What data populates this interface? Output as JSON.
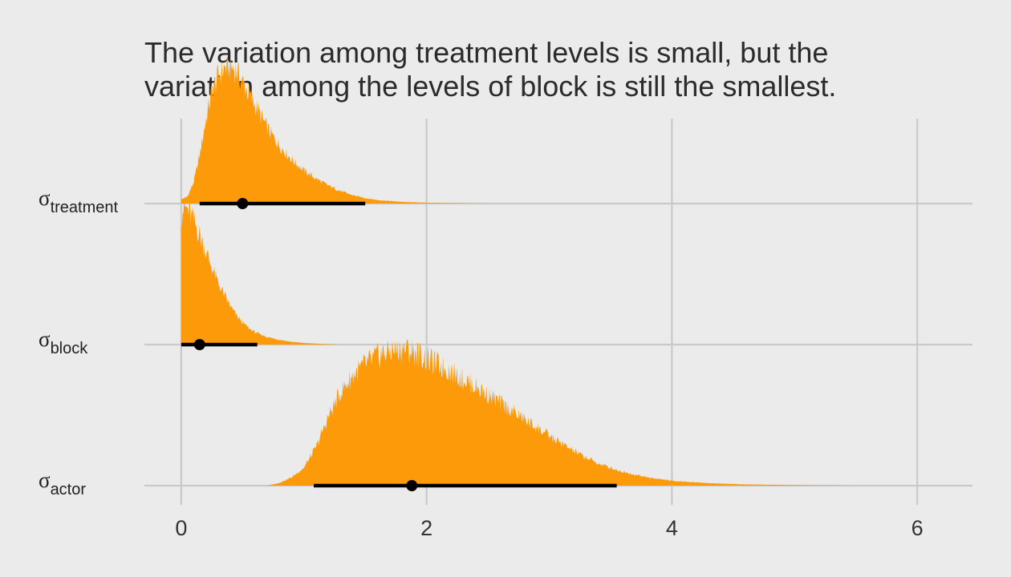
{
  "chart_data": {
    "type": "density-ridges",
    "title_lines": [
      "The variation among treatment levels is small, but the",
      "variation among the levels of block is still the smallest."
    ],
    "xlabel": "",
    "ylabel": "",
    "xlim": [
      -0.3,
      6.45
    ],
    "x_ticks": [
      0,
      2,
      4,
      6
    ],
    "x_tick_labels": [
      "0",
      "2",
      "4",
      "6"
    ],
    "grid": true,
    "colors": {
      "fill": "#fd9a09",
      "interval": "#000000",
      "grid": "#c9c9c9",
      "background": "#ebebeb"
    },
    "series": [
      {
        "name": "treatment",
        "label_symbol": "σ",
        "label_sub": "treatment",
        "point": 0.5,
        "interval": [
          0.15,
          1.5
        ],
        "density_x": [
          0.0,
          0.05,
          0.1,
          0.15,
          0.2,
          0.25,
          0.3,
          0.35,
          0.4,
          0.45,
          0.5,
          0.55,
          0.6,
          0.7,
          0.8,
          0.9,
          1.0,
          1.1,
          1.2,
          1.3,
          1.4,
          1.5,
          1.6,
          1.8,
          2.0,
          2.2,
          2.5
        ],
        "density_y": [
          0.03,
          0.05,
          0.15,
          0.35,
          0.6,
          0.82,
          0.92,
          0.98,
          1.0,
          0.96,
          0.88,
          0.8,
          0.72,
          0.55,
          0.42,
          0.32,
          0.24,
          0.18,
          0.13,
          0.09,
          0.06,
          0.04,
          0.025,
          0.012,
          0.006,
          0.003,
          0.0
        ]
      },
      {
        "name": "block",
        "label_symbol": "σ",
        "label_sub": "block",
        "point": 0.15,
        "interval": [
          0.0,
          0.62
        ],
        "density_x": [
          0.0,
          0.02,
          0.05,
          0.08,
          0.1,
          0.15,
          0.2,
          0.25,
          0.3,
          0.35,
          0.4,
          0.45,
          0.5,
          0.55,
          0.6,
          0.7,
          0.8,
          0.9,
          1.0,
          1.1,
          1.2,
          1.3
        ],
        "density_y": [
          0.95,
          1.0,
          0.98,
          0.94,
          0.9,
          0.8,
          0.68,
          0.56,
          0.45,
          0.36,
          0.28,
          0.21,
          0.16,
          0.12,
          0.09,
          0.055,
          0.035,
          0.02,
          0.012,
          0.007,
          0.003,
          0.0
        ]
      },
      {
        "name": "actor",
        "label_symbol": "σ",
        "label_sub": "actor",
        "point": 1.88,
        "interval": [
          1.08,
          3.55
        ],
        "density_x": [
          0.7,
          0.8,
          0.9,
          1.0,
          1.1,
          1.2,
          1.3,
          1.4,
          1.5,
          1.6,
          1.7,
          1.8,
          1.9,
          2.0,
          2.2,
          2.4,
          2.6,
          2.8,
          3.0,
          3.2,
          3.4,
          3.6,
          3.8,
          4.0,
          4.3,
          4.6,
          5.0,
          5.5
        ],
        "density_y": [
          0.0,
          0.02,
          0.06,
          0.13,
          0.28,
          0.5,
          0.68,
          0.8,
          0.88,
          0.94,
          0.98,
          1.0,
          0.97,
          0.92,
          0.83,
          0.72,
          0.6,
          0.48,
          0.36,
          0.25,
          0.16,
          0.1,
          0.06,
          0.035,
          0.018,
          0.009,
          0.004,
          0.0
        ]
      }
    ]
  }
}
